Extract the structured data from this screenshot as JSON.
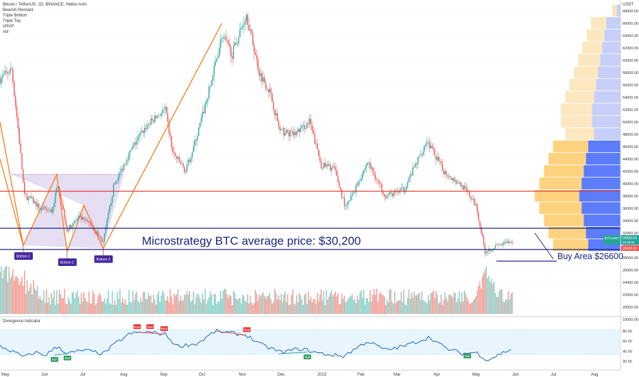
{
  "header": {
    "legend_lines": [
      "Bitcoin / TetherUS, 1D, BINANCE, Heikin Ashi",
      "Bearish Pennant",
      "Triple Bottom",
      "Triple Top",
      "VRVP",
      "Vol"
    ],
    "currency": "USDT"
  },
  "annotations": {
    "microstrategy": "Microstrategy BTC average price: $30,200",
    "buy_area": "Buy Area $26600",
    "bottoms": [
      "Bottom 1",
      "Bottom 2",
      "Bottom 3"
    ],
    "last_price_label": "BTCUSDT",
    "last_price": "30550.54",
    "countdown": "15:33:00",
    "low_price": "29429.39"
  },
  "indicator": {
    "title": "Divergence Indicator",
    "bull_label": "Bull",
    "bear_label": "Bear"
  },
  "colors": {
    "up": "#26a69a",
    "down": "#ef5350",
    "pattern_line": "#ff6d00",
    "horizontal_blue": "#1a237e",
    "horizontal_red": "#e53935",
    "osc_line": "#1565c0",
    "volume_profile_blue": "#5c7cfa",
    "volume_profile_orange": "#ffd27f",
    "label_purple": "#4527a0"
  },
  "chart_data": [
    {
      "type": "candlestick",
      "title": "Bitcoin / TetherUS, 1D, BINANCE, Heikin Ashi",
      "x_ticks": [
        "May",
        "Jun",
        "Jul",
        "Aug",
        "Sep",
        "Oct",
        "Nov",
        "Dec",
        "2022",
        "Feb",
        "Mar",
        "Apr",
        "May",
        "Jun",
        "Jul",
        "Aug"
      ],
      "y_ticks": [
        18000,
        20000,
        22000,
        24000,
        26000,
        28000,
        30000,
        32000,
        34000,
        36000,
        38000,
        40000,
        42000,
        44000,
        46000,
        48000,
        50000,
        52000,
        54000,
        56000,
        58000,
        60000,
        62000,
        64000,
        66000,
        68000
      ],
      "ylim": [
        17000,
        70000
      ],
      "close_series": [
        {
          "date": "2021-05-01",
          "value": 57000
        },
        {
          "date": "2021-05-10",
          "value": 58500
        },
        {
          "date": "2021-05-15",
          "value": 49000
        },
        {
          "date": "2021-05-20",
          "value": 38000
        },
        {
          "date": "2021-05-25",
          "value": 37500
        },
        {
          "date": "2021-06-01",
          "value": 36000
        },
        {
          "date": "2021-06-10",
          "value": 35500
        },
        {
          "date": "2021-06-15",
          "value": 40000
        },
        {
          "date": "2021-06-22",
          "value": 32500
        },
        {
          "date": "2021-07-01",
          "value": 34500
        },
        {
          "date": "2021-07-10",
          "value": 33500
        },
        {
          "date": "2021-07-20",
          "value": 30500
        },
        {
          "date": "2021-07-28",
          "value": 39500
        },
        {
          "date": "2021-08-07",
          "value": 44000
        },
        {
          "date": "2021-08-15",
          "value": 47000
        },
        {
          "date": "2021-08-23",
          "value": 49500
        },
        {
          "date": "2021-09-06",
          "value": 52000
        },
        {
          "date": "2021-09-12",
          "value": 45000
        },
        {
          "date": "2021-09-22",
          "value": 42000
        },
        {
          "date": "2021-10-01",
          "value": 48000
        },
        {
          "date": "2021-10-10",
          "value": 55000
        },
        {
          "date": "2021-10-20",
          "value": 64000
        },
        {
          "date": "2021-10-28",
          "value": 61000
        },
        {
          "date": "2021-11-08",
          "value": 67500
        },
        {
          "date": "2021-11-18",
          "value": 58000
        },
        {
          "date": "2021-11-26",
          "value": 55000
        },
        {
          "date": "2021-12-04",
          "value": 48500
        },
        {
          "date": "2021-12-15",
          "value": 48000
        },
        {
          "date": "2021-12-27",
          "value": 50000
        },
        {
          "date": "2022-01-05",
          "value": 43000
        },
        {
          "date": "2022-01-15",
          "value": 42500
        },
        {
          "date": "2022-01-24",
          "value": 36000
        },
        {
          "date": "2022-02-10",
          "value": 43500
        },
        {
          "date": "2022-02-24",
          "value": 38000
        },
        {
          "date": "2022-03-10",
          "value": 39000
        },
        {
          "date": "2022-03-28",
          "value": 47000
        },
        {
          "date": "2022-04-10",
          "value": 42000
        },
        {
          "date": "2022-04-25",
          "value": 39500
        },
        {
          "date": "2022-05-05",
          "value": 36500
        },
        {
          "date": "2022-05-12",
          "value": 29000
        },
        {
          "date": "2022-05-22",
          "value": 30000
        },
        {
          "date": "2022-06-02",
          "value": 30550
        }
      ],
      "volume_ylim": [
        0,
        100
      ]
    },
    {
      "type": "line",
      "title": "Divergence Indicator",
      "y_ticks": [
        20,
        40,
        60,
        80
      ],
      "ylim": [
        15,
        85
      ],
      "band": [
        30,
        70
      ],
      "series": [
        {
          "date": "2021-05-01",
          "value": 50
        },
        {
          "date": "2021-05-10",
          "value": 40
        },
        {
          "date": "2021-05-20",
          "value": 28
        },
        {
          "date": "2021-05-28",
          "value": 38
        },
        {
          "date": "2021-06-05",
          "value": 32
        },
        {
          "date": "2021-06-15",
          "value": 50
        },
        {
          "date": "2021-06-22",
          "value": 35
        },
        {
          "date": "2021-07-05",
          "value": 42
        },
        {
          "date": "2021-07-20",
          "value": 35
        },
        {
          "date": "2021-08-01",
          "value": 60
        },
        {
          "date": "2021-08-10",
          "value": 75
        },
        {
          "date": "2021-08-22",
          "value": 78
        },
        {
          "date": "2021-09-06",
          "value": 74
        },
        {
          "date": "2021-09-15",
          "value": 50
        },
        {
          "date": "2021-10-01",
          "value": 55
        },
        {
          "date": "2021-10-15",
          "value": 80
        },
        {
          "date": "2021-11-08",
          "value": 72
        },
        {
          "date": "2021-11-20",
          "value": 52
        },
        {
          "date": "2021-12-05",
          "value": 38
        },
        {
          "date": "2021-12-20",
          "value": 45
        },
        {
          "date": "2022-01-05",
          "value": 35
        },
        {
          "date": "2022-01-22",
          "value": 30
        },
        {
          "date": "2022-02-10",
          "value": 60
        },
        {
          "date": "2022-02-24",
          "value": 42
        },
        {
          "date": "2022-03-10",
          "value": 50
        },
        {
          "date": "2022-03-30",
          "value": 68
        },
        {
          "date": "2022-04-12",
          "value": 45
        },
        {
          "date": "2022-04-25",
          "value": 35
        },
        {
          "date": "2022-05-05",
          "value": 38
        },
        {
          "date": "2022-05-14",
          "value": 22
        },
        {
          "date": "2022-05-24",
          "value": 35
        },
        {
          "date": "2022-06-02",
          "value": 45
        }
      ]
    }
  ]
}
